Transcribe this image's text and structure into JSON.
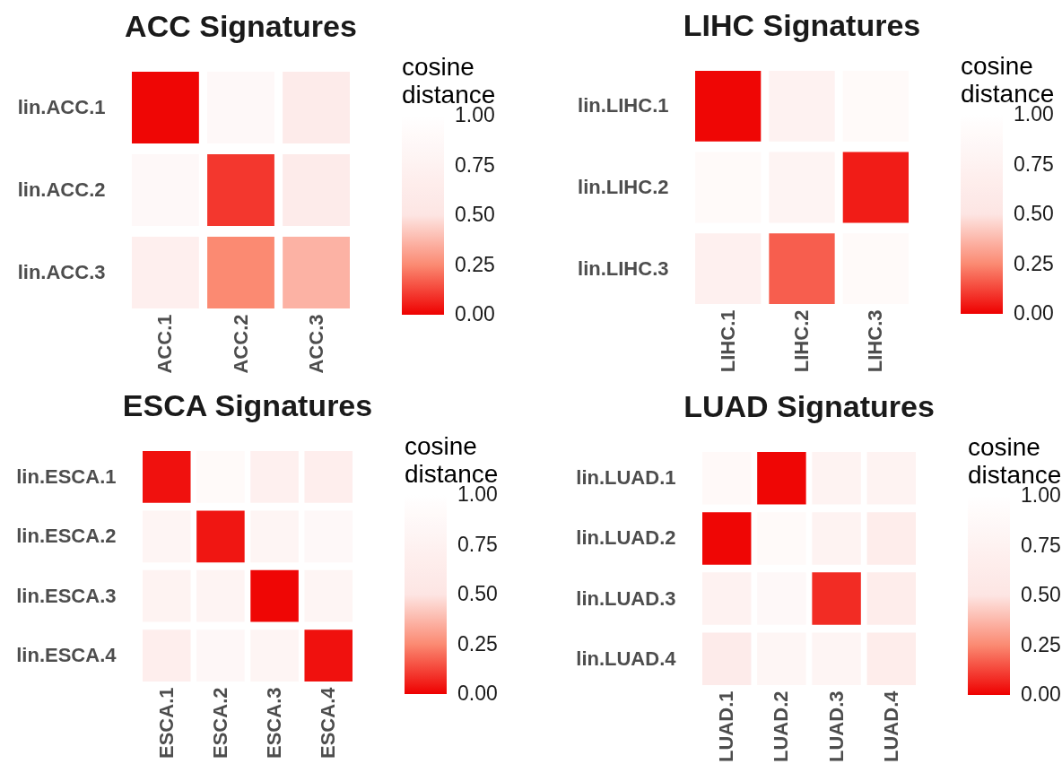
{
  "chart_data": [
    {
      "type": "heatmap",
      "title": "ACC Signatures",
      "categories": [
        "ACC.1",
        "ACC.2",
        "ACC.3"
      ],
      "y_categories": [
        "lin.ACC.1",
        "lin.ACC.2",
        "lin.ACC.3"
      ],
      "cells": [
        [
          0.01,
          0.87,
          0.62
        ],
        [
          0.87,
          0.1,
          0.62
        ],
        [
          0.7,
          0.25,
          0.36
        ]
      ],
      "clabel": "cosine distance",
      "clim": [
        0,
        1
      ],
      "cticks": [
        {
          "value": 0,
          "label": "0.00"
        },
        {
          "value": 0.25,
          "label": "0.25"
        },
        {
          "value": 0.5,
          "label": "0.50"
        },
        {
          "value": 0.75,
          "label": "0.75"
        },
        {
          "value": 1,
          "label": "1.00"
        }
      ]
    },
    {
      "type": "heatmap",
      "title": "LIHC Signatures",
      "categories": [
        "LIHC.1",
        "LIHC.2",
        "LIHC.3"
      ],
      "y_categories": [
        "lin.LIHC.1",
        "lin.LIHC.2",
        "lin.LIHC.3"
      ],
      "cells": [
        [
          0.01,
          0.75,
          0.9
        ],
        [
          0.9,
          0.78,
          0.05
        ],
        [
          0.72,
          0.17,
          0.9
        ]
      ],
      "clabel": "cosine distance",
      "clim": [
        0,
        1
      ],
      "cticks": [
        {
          "value": 0,
          "label": "0.00"
        },
        {
          "value": 0.25,
          "label": "0.25"
        },
        {
          "value": 0.5,
          "label": "0.50"
        },
        {
          "value": 0.75,
          "label": "0.75"
        },
        {
          "value": 1,
          "label": "1.00"
        }
      ]
    },
    {
      "type": "heatmap",
      "title": "ESCA Signatures",
      "categories": [
        "ESCA.1",
        "ESCA.2",
        "ESCA.3",
        "ESCA.4"
      ],
      "y_categories": [
        "lin.ESCA.1",
        "lin.ESCA.2",
        "lin.ESCA.3",
        "lin.ESCA.4"
      ],
      "cells": [
        [
          0.03,
          0.9,
          0.72,
          0.68
        ],
        [
          0.8,
          0.04,
          0.8,
          0.87
        ],
        [
          0.77,
          0.78,
          0.01,
          0.8
        ],
        [
          0.68,
          0.85,
          0.8,
          0.03
        ]
      ],
      "clabel": "cosine distance",
      "clim": [
        0,
        1
      ],
      "cticks": [
        {
          "value": 0,
          "label": "0.00"
        },
        {
          "value": 0.25,
          "label": "0.25"
        },
        {
          "value": 0.5,
          "label": "0.50"
        },
        {
          "value": 0.75,
          "label": "0.75"
        },
        {
          "value": 1,
          "label": "1.00"
        }
      ]
    },
    {
      "type": "heatmap",
      "title": "LUAD Signatures",
      "categories": [
        "LUAD.1",
        "LUAD.2",
        "LUAD.3",
        "LUAD.4"
      ],
      "y_categories": [
        "lin.LUAD.1",
        "lin.LUAD.2",
        "lin.LUAD.3",
        "lin.LUAD.4"
      ],
      "cells": [
        [
          0.88,
          0.01,
          0.77,
          0.77
        ],
        [
          0.01,
          0.9,
          0.77,
          0.65
        ],
        [
          0.75,
          0.87,
          0.08,
          0.65
        ],
        [
          0.62,
          0.82,
          0.8,
          0.65
        ]
      ],
      "clabel": "cosine distance",
      "clim": [
        0,
        1
      ],
      "cticks": [
        {
          "value": 0,
          "label": "0.00"
        },
        {
          "value": 0.25,
          "label": "0.25"
        },
        {
          "value": 0.5,
          "label": "0.50"
        },
        {
          "value": 0.75,
          "label": "0.75"
        },
        {
          "value": 1,
          "label": "1.00"
        }
      ]
    }
  ]
}
